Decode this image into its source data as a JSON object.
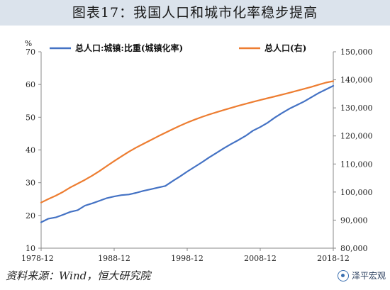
{
  "title": "图表17：我国人口和城市化率稳步提高",
  "source": "资料来源：Wind，恒大研究院",
  "watermark": "泽平宏观",
  "watermark_icon": "wechat-icon",
  "chart_data": {
    "type": "line",
    "left_axis_unit": "%",
    "left_axis": {
      "min": 10,
      "max": 70,
      "ticks": [
        "10",
        "20",
        "30",
        "40",
        "50",
        "60",
        "70"
      ]
    },
    "right_axis": {
      "min": 80000,
      "max": 150000,
      "ticks": [
        "80,000",
        "90,000",
        "100,000",
        "110,000",
        "120,000",
        "130,000",
        "140,000",
        "150,000"
      ]
    },
    "x_range": [
      1978,
      2018
    ],
    "x_ticks": [
      {
        "year": 1978,
        "label": "1978-12"
      },
      {
        "year": 1988,
        "label": "1988-12"
      },
      {
        "year": 1998,
        "label": "1998-12"
      },
      {
        "year": 2008,
        "label": "2008-12"
      },
      {
        "year": 2018,
        "label": "2018-12"
      }
    ],
    "grid": false,
    "legend_position": "top",
    "series": [
      {
        "name": "总人口:城镇:比重(城镇化率)",
        "axis": "left",
        "color": "#4472c4",
        "x": [
          1978,
          1979,
          1980,
          1981,
          1982,
          1983,
          1984,
          1985,
          1986,
          1987,
          1988,
          1989,
          1990,
          1991,
          1992,
          1993,
          1994,
          1995,
          1996,
          1997,
          1998,
          1999,
          2000,
          2001,
          2002,
          2003,
          2004,
          2005,
          2006,
          2007,
          2008,
          2009,
          2010,
          2011,
          2012,
          2013,
          2014,
          2015,
          2016,
          2017,
          2018
        ],
        "values": [
          17.9,
          19.0,
          19.4,
          20.2,
          21.1,
          21.6,
          23.0,
          23.7,
          24.5,
          25.3,
          25.8,
          26.2,
          26.4,
          26.9,
          27.5,
          28.0,
          28.5,
          29.0,
          30.5,
          31.9,
          33.4,
          34.8,
          36.2,
          37.7,
          39.1,
          40.5,
          41.8,
          43.0,
          44.3,
          45.9,
          47.0,
          48.3,
          49.9,
          51.3,
          52.6,
          53.7,
          54.8,
          56.1,
          57.4,
          58.5,
          59.6
        ]
      },
      {
        "name": "总人口(右)",
        "axis": "right",
        "color": "#ed7d31",
        "x": [
          1978,
          1979,
          1980,
          1981,
          1982,
          1983,
          1984,
          1985,
          1986,
          1987,
          1988,
          1989,
          1990,
          1991,
          1992,
          1993,
          1994,
          1995,
          1996,
          1997,
          1998,
          1999,
          2000,
          2001,
          2002,
          2003,
          2004,
          2005,
          2006,
          2007,
          2008,
          2009,
          2010,
          2011,
          2012,
          2013,
          2014,
          2015,
          2016,
          2017,
          2018
        ],
        "values": [
          96259,
          97542,
          98705,
          100072,
          101654,
          103008,
          104357,
          105851,
          107507,
          109300,
          111026,
          112704,
          114333,
          115823,
          117171,
          118517,
          119850,
          121121,
          122389,
          123626,
          124761,
          125786,
          126743,
          127627,
          128453,
          129227,
          129988,
          130756,
          131448,
          132129,
          132802,
          133450,
          134091,
          134735,
          135404,
          136072,
          136782,
          137462,
          138271,
          139008,
          139538
        ]
      }
    ]
  }
}
